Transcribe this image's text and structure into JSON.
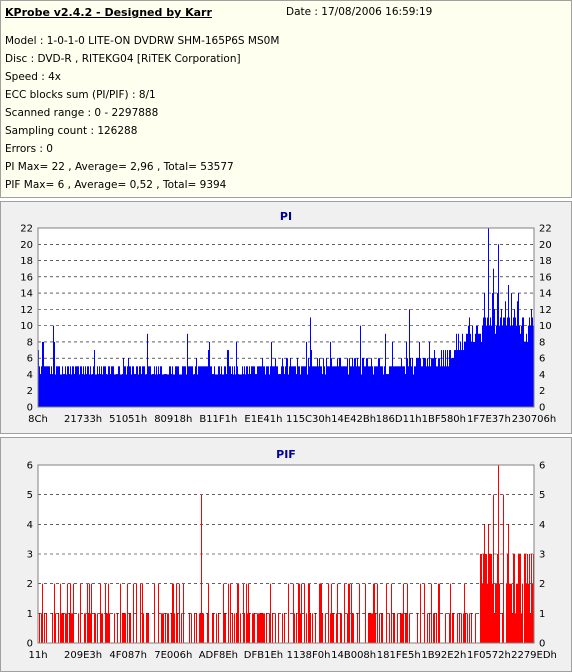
{
  "header": {
    "title": "KProbe v2.4.2 - Designed by Karr",
    "date": "Date : 17/08/2006 16:59:19",
    "lines": [
      "Model : 1-0-1-0 LITE-ON DVDRW SHM-165P6S MS0M",
      "Disc : DVD-R , RITEKG04 [RiTEK Corporation]",
      "Speed : 4x",
      "ECC blocks sum (PI/PIF) : 8/1",
      "Scanned range : 0 - 2297888",
      "Sampling count : 126288",
      "Errors : 0",
      "PI Max= 22 , Average= 2,96 , Total= 53577",
      "PIF Max= 6 , Average= 0,52 , Total= 9394"
    ]
  },
  "chart_data": [
    {
      "type": "bar",
      "title": "PI",
      "color": "#0000ff",
      "ylim": [
        0,
        22
      ],
      "yticks": [
        0,
        2,
        4,
        6,
        8,
        10,
        12,
        14,
        16,
        18,
        20,
        22
      ],
      "xticks": [
        "8Ch",
        "21733h",
        "51051h",
        "80918h",
        "B11F1h",
        "E1E41h",
        "115C30h",
        "14E42Bh",
        "186D11h",
        "1BF580h",
        "1F7E37h",
        "230706h"
      ],
      "grid": true,
      "max": 22,
      "average": 2.96,
      "profile": [
        [
          0,
          4.5
        ],
        [
          5,
          4.2
        ],
        [
          10,
          4.2
        ],
        [
          15,
          4.3
        ],
        [
          20,
          4.2
        ],
        [
          25,
          4.3
        ],
        [
          30,
          4.4
        ],
        [
          35,
          4.5
        ],
        [
          40,
          4.4
        ],
        [
          45,
          4.3
        ],
        [
          50,
          4.5
        ],
        [
          55,
          4.6
        ],
        [
          60,
          4.8
        ],
        [
          65,
          4.8
        ],
        [
          70,
          4.6
        ],
        [
          75,
          4.8
        ],
        [
          80,
          5.2
        ],
        [
          83,
          6
        ],
        [
          86,
          7.5
        ],
        [
          89,
          9
        ],
        [
          92,
          10
        ],
        [
          94,
          11
        ],
        [
          96,
          10.5
        ],
        [
          98,
          9
        ],
        [
          100,
          9
        ]
      ],
      "spikes": [
        [
          91,
          22
        ],
        [
          92,
          17
        ],
        [
          93,
          20
        ],
        [
          90,
          14
        ],
        [
          95,
          15
        ],
        [
          75,
          12
        ],
        [
          55,
          11
        ],
        [
          87,
          11
        ],
        [
          3,
          10
        ],
        [
          22,
          9
        ],
        [
          40,
          8
        ],
        [
          65,
          10
        ],
        [
          70,
          9
        ],
        [
          30,
          9
        ],
        [
          47,
          8
        ]
      ]
    },
    {
      "type": "bar",
      "title": "PIF",
      "color": "#ff0000",
      "ylim": [
        0,
        6
      ],
      "yticks": [
        0,
        1,
        2,
        3,
        4,
        5,
        6
      ],
      "xticks": [
        "11h",
        "209E3h",
        "4F087h",
        "7E006h",
        "ADF8Eh",
        "DFB1Eh",
        "1138F0h",
        "14B008h",
        "181FE5h",
        "1B92E2h",
        "1F0572h",
        "2279EDh"
      ],
      "grid": true,
      "max": 6,
      "average": 0.52,
      "spikes": [
        [
          33,
          5
        ],
        [
          93,
          6
        ],
        [
          92,
          5
        ],
        [
          94,
          5
        ],
        [
          91,
          4
        ],
        [
          95,
          4
        ],
        [
          90,
          4
        ]
      ]
    }
  ]
}
